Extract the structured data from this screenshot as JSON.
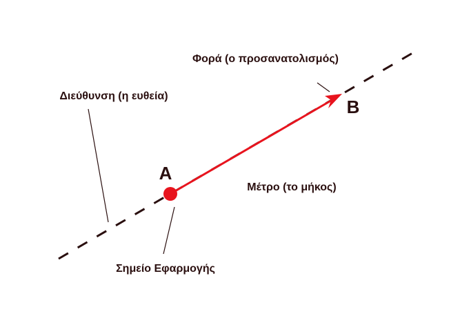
{
  "labels": {
    "sense": "Φορά (ο προσανατολισμός)",
    "direction": "Διεύθυνση (η ευθεία)",
    "point_b": "B",
    "point_a": "A",
    "magnitude": "Μέτρο (το μήκος)",
    "point_of_application": "Σημείο Εφαρμογής"
  }
}
